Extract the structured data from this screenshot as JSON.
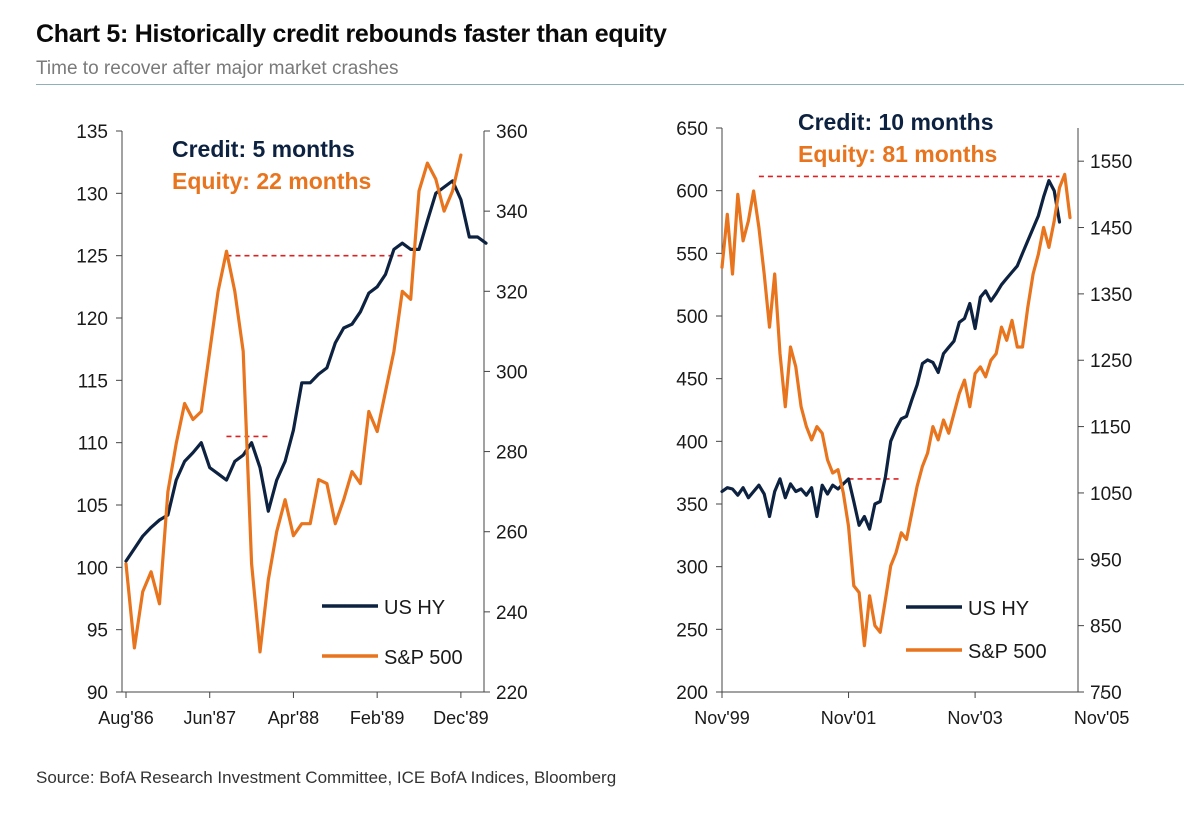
{
  "header": {
    "title": "Chart 5: Historically credit rebounds faster than equity",
    "subtitle": "Time to recover after major market crashes"
  },
  "footer": {
    "source": "Source: BofA Research Investment Committee, ICE BofA Indices, Bloomberg"
  },
  "colors": {
    "credit": "#0d2240",
    "equity": "#e8741e",
    "recovery_line": "#e02020",
    "axis": "#444444"
  },
  "chart_data": [
    {
      "type": "line",
      "x_tick_labels": [
        "Aug'86",
        "Jun'87",
        "Apr'88",
        "Feb'89",
        "Dec'89"
      ],
      "x_tick_index": [
        0,
        10,
        20,
        30,
        40
      ],
      "y_left": {
        "range": [
          90,
          135
        ],
        "ticks": [
          90,
          95,
          100,
          105,
          110,
          115,
          120,
          125,
          130,
          135
        ]
      },
      "y_right": {
        "range": [
          220,
          360
        ],
        "ticks": [
          220,
          240,
          260,
          280,
          300,
          320,
          340,
          360
        ]
      },
      "annotations": [
        {
          "text": "Credit: 5 months",
          "color_key": "credit"
        },
        {
          "text": "Equity: 22 months",
          "color_key": "equity"
        }
      ],
      "legend": {
        "position": "bottom-right"
      },
      "series": [
        {
          "name": "US HY",
          "axis": "left",
          "color_key": "credit",
          "values": [
            100.5,
            101.5,
            102.5,
            103.2,
            103.8,
            104.2,
            107.0,
            108.5,
            109.2,
            110.0,
            108.0,
            107.5,
            107.0,
            108.5,
            109.0,
            110.0,
            108.0,
            104.5,
            107.0,
            108.5,
            111.0,
            114.8,
            114.8,
            115.5,
            116.0,
            118.0,
            119.2,
            119.5,
            120.5,
            122.0,
            122.5,
            123.5,
            125.5,
            126.0,
            125.5,
            125.5,
            127.8,
            130.0,
            130.5,
            131.0,
            129.5,
            126.5,
            126.5,
            126.0
          ]
        },
        {
          "name": "S&P 500",
          "axis": "right",
          "color_key": "equity",
          "values": [
            252,
            231,
            245,
            250,
            242,
            270,
            282,
            292,
            288,
            290,
            305,
            320,
            330,
            320,
            305,
            252,
            230,
            248,
            260,
            268,
            259,
            262,
            262,
            273,
            272,
            262,
            268,
            275,
            272,
            290,
            285,
            295,
            305,
            320,
            318,
            345,
            352,
            348,
            340,
            345,
            354
          ]
        }
      ],
      "recovery_lines": [
        {
          "axis": "left",
          "value": 125.0,
          "from_index": 12,
          "to_index": 33,
          "series": "S&P 500"
        },
        {
          "axis": "left",
          "value": 110.5,
          "from_index": 12,
          "to_index": 17,
          "series": "US HY"
        }
      ]
    },
    {
      "type": "line",
      "x_tick_labels": [
        "Nov'99",
        "Nov'01",
        "Nov'03",
        "Nov'05"
      ],
      "x_tick_index": [
        0,
        24,
        48,
        72
      ],
      "y_left": {
        "range": [
          200,
          650
        ],
        "ticks": [
          200,
          250,
          300,
          350,
          400,
          450,
          500,
          550,
          600,
          650
        ]
      },
      "y_right": {
        "range": [
          750,
          1600
        ],
        "ticks": [
          750,
          850,
          950,
          1050,
          1150,
          1250,
          1350,
          1450,
          1550
        ]
      },
      "annotations": [
        {
          "text": "Credit: 10 months",
          "color_key": "credit"
        },
        {
          "text": "Equity: 81 months",
          "color_key": "equity"
        }
      ],
      "legend": {
        "position": "bottom-right"
      },
      "series": [
        {
          "name": "US HY",
          "axis": "left",
          "color_key": "credit",
          "values": [
            360,
            363,
            362,
            357,
            363,
            355,
            360,
            365,
            358,
            340,
            360,
            370,
            355,
            366,
            360,
            362,
            357,
            363,
            340,
            365,
            358,
            365,
            362,
            366,
            370,
            352,
            333,
            340,
            330,
            350,
            352,
            372,
            400,
            410,
            418,
            420,
            433,
            445,
            462,
            465,
            463,
            455,
            470,
            475,
            480,
            495,
            498,
            510,
            490,
            515,
            520,
            512,
            518,
            525,
            530,
            535,
            540,
            550,
            560,
            570,
            580,
            595,
            608,
            600,
            575
          ]
        },
        {
          "name": "S&P 500",
          "axis": "right",
          "color_key": "equity",
          "values": [
            1390,
            1470,
            1380,
            1500,
            1430,
            1460,
            1505,
            1450,
            1380,
            1300,
            1380,
            1260,
            1180,
            1270,
            1240,
            1180,
            1150,
            1130,
            1150,
            1140,
            1100,
            1080,
            1085,
            1050,
            1000,
            910,
            900,
            820,
            895,
            850,
            840,
            890,
            940,
            960,
            990,
            980,
            1020,
            1060,
            1090,
            1110,
            1150,
            1130,
            1160,
            1140,
            1170,
            1200,
            1220,
            1180,
            1230,
            1240,
            1225,
            1250,
            1260,
            1300,
            1280,
            1310,
            1270,
            1270,
            1330,
            1380,
            1410,
            1450,
            1420,
            1460,
            1510,
            1530,
            1465
          ]
        }
      ],
      "recovery_lines": [
        {
          "axis": "right",
          "value": 1527,
          "from_index": 7,
          "to_index": 64,
          "series": "S&P 500"
        },
        {
          "axis": "left",
          "value": 370,
          "from_index": 24,
          "to_index": 34,
          "series": "US HY"
        }
      ]
    }
  ]
}
